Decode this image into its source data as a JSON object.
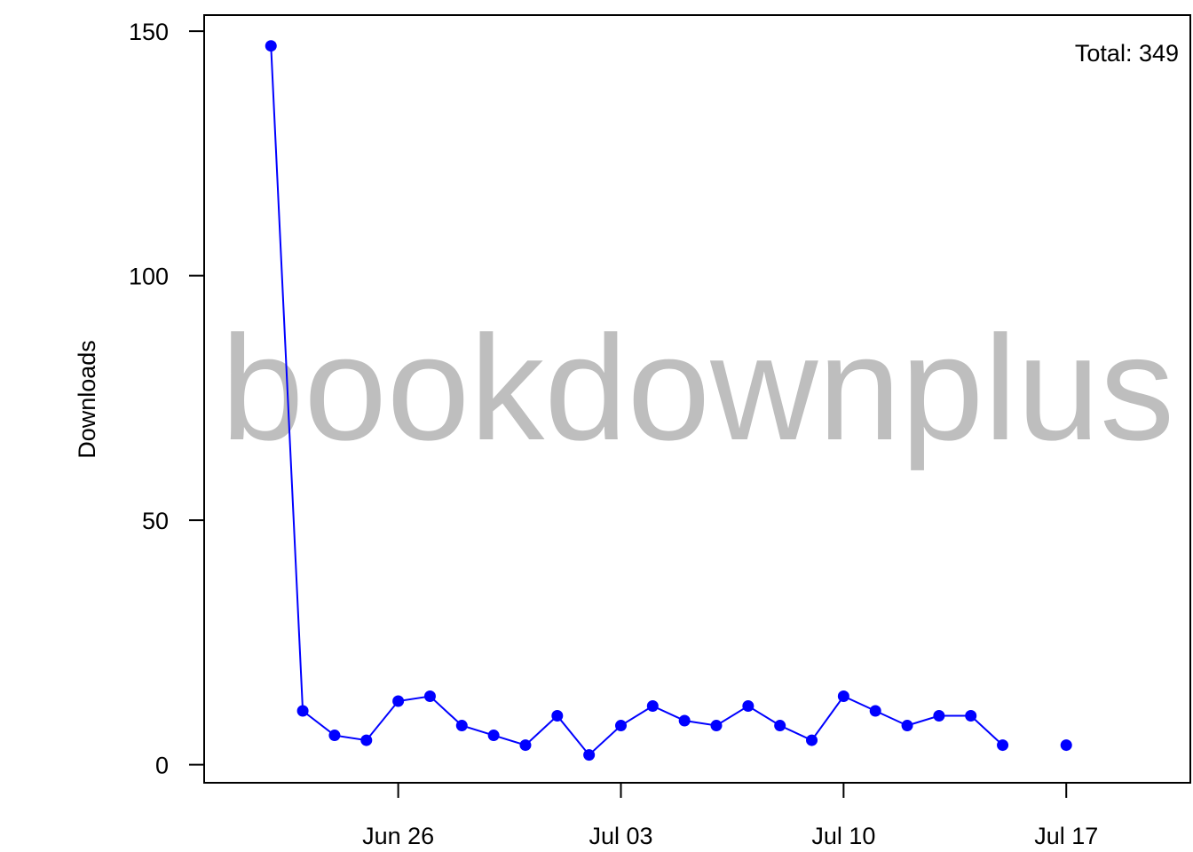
{
  "chart_data": {
    "type": "line",
    "title": "",
    "xlabel": "",
    "ylabel": "Downloads",
    "x_type": "date",
    "x": [
      "2023-06-22",
      "2023-06-23",
      "2023-06-24",
      "2023-06-25",
      "2023-06-26",
      "2023-06-27",
      "2023-06-28",
      "2023-06-29",
      "2023-06-30",
      "2023-07-01",
      "2023-07-02",
      "2023-07-03",
      "2023-07-04",
      "2023-07-05",
      "2023-07-06",
      "2023-07-07",
      "2023-07-08",
      "2023-07-09",
      "2023-07-10",
      "2023-07-11",
      "2023-07-12",
      "2023-07-13",
      "2023-07-14",
      "2023-07-15",
      "2023-07-16",
      "2023-07-17"
    ],
    "y": [
      147,
      11,
      6,
      5,
      13,
      14,
      8,
      6,
      4,
      10,
      2,
      8,
      12,
      9,
      8,
      12,
      8,
      5,
      14,
      11,
      8,
      10,
      10,
      4,
      null,
      4
    ],
    "series": [
      {
        "values": [
          147,
          11,
          6,
          5,
          13,
          14,
          8,
          6,
          4,
          10,
          2,
          8,
          12,
          9,
          8,
          12,
          8,
          5,
          14,
          11,
          8,
          10,
          10,
          4,
          null,
          4
        ],
        "color": "#0000ff"
      }
    ],
    "xlim": [
      "2023-06-19.9",
      "2023-07-20.9"
    ],
    "ylim": [
      -3.7,
      153.3
    ],
    "x_ticks": [
      {
        "date": "2023-06-26",
        "label": "Jun 26"
      },
      {
        "date": "2023-07-03",
        "label": "Jul 03"
      },
      {
        "date": "2023-07-10",
        "label": "Jul 10"
      },
      {
        "date": "2023-07-17",
        "label": "Jul 17"
      }
    ],
    "y_ticks": [
      {
        "value": 0,
        "label": "0"
      },
      {
        "value": 50,
        "label": "50"
      },
      {
        "value": 100,
        "label": "100"
      },
      {
        "value": 150,
        "label": "150"
      }
    ],
    "grid": false,
    "legend": "none",
    "annotation": "Total: 349",
    "watermark": "bookdownplus",
    "line_color": "#0000ff",
    "watermark_color": "#bebebe"
  }
}
